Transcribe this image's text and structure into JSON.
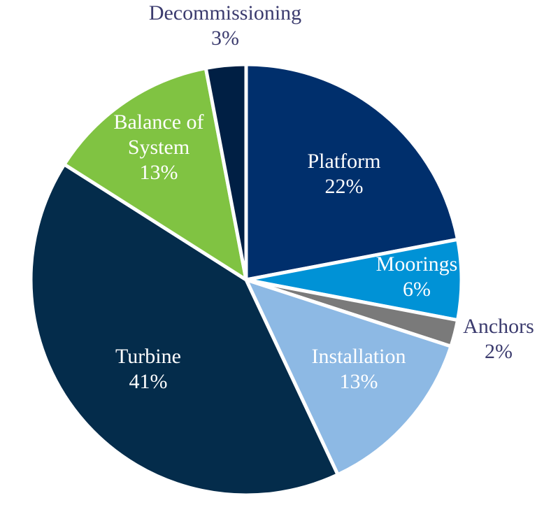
{
  "chart_data": {
    "type": "pie",
    "title": "",
    "start_angle_deg": 0,
    "direction": "clockwise",
    "slices": [
      {
        "label": "Platform",
        "value_label": "22%",
        "value": 22,
        "color": "#002F6C",
        "label_color": "#ffffff",
        "label_position": "inside"
      },
      {
        "label": "Moorings",
        "value_label": "6%",
        "value": 6,
        "color": "#0092D6",
        "label_color": "#ffffff",
        "label_position": "inside"
      },
      {
        "label": "Anchors",
        "value_label": "2%",
        "value": 2,
        "color": "#7A7A7A",
        "label_color": "#3B3B6E",
        "label_position": "outside"
      },
      {
        "label": "Installation",
        "value_label": "13%",
        "value": 13,
        "color": "#8DB9E4",
        "label_color": "#ffffff",
        "label_position": "inside"
      },
      {
        "label": "Turbine",
        "value_label": "41%",
        "value": 41,
        "color": "#042C4B",
        "label_color": "#ffffff",
        "label_position": "inside"
      },
      {
        "label": "Balance of\nSystem",
        "value_label": "13%",
        "value": 13,
        "color": "#80C342",
        "label_color": "#ffffff",
        "label_position": "inside"
      },
      {
        "label": "Decommissioning",
        "value_label": "3%",
        "value": 3,
        "color": "#001F44",
        "label_color": "#3B3B6E",
        "label_position": "outside"
      }
    ]
  }
}
